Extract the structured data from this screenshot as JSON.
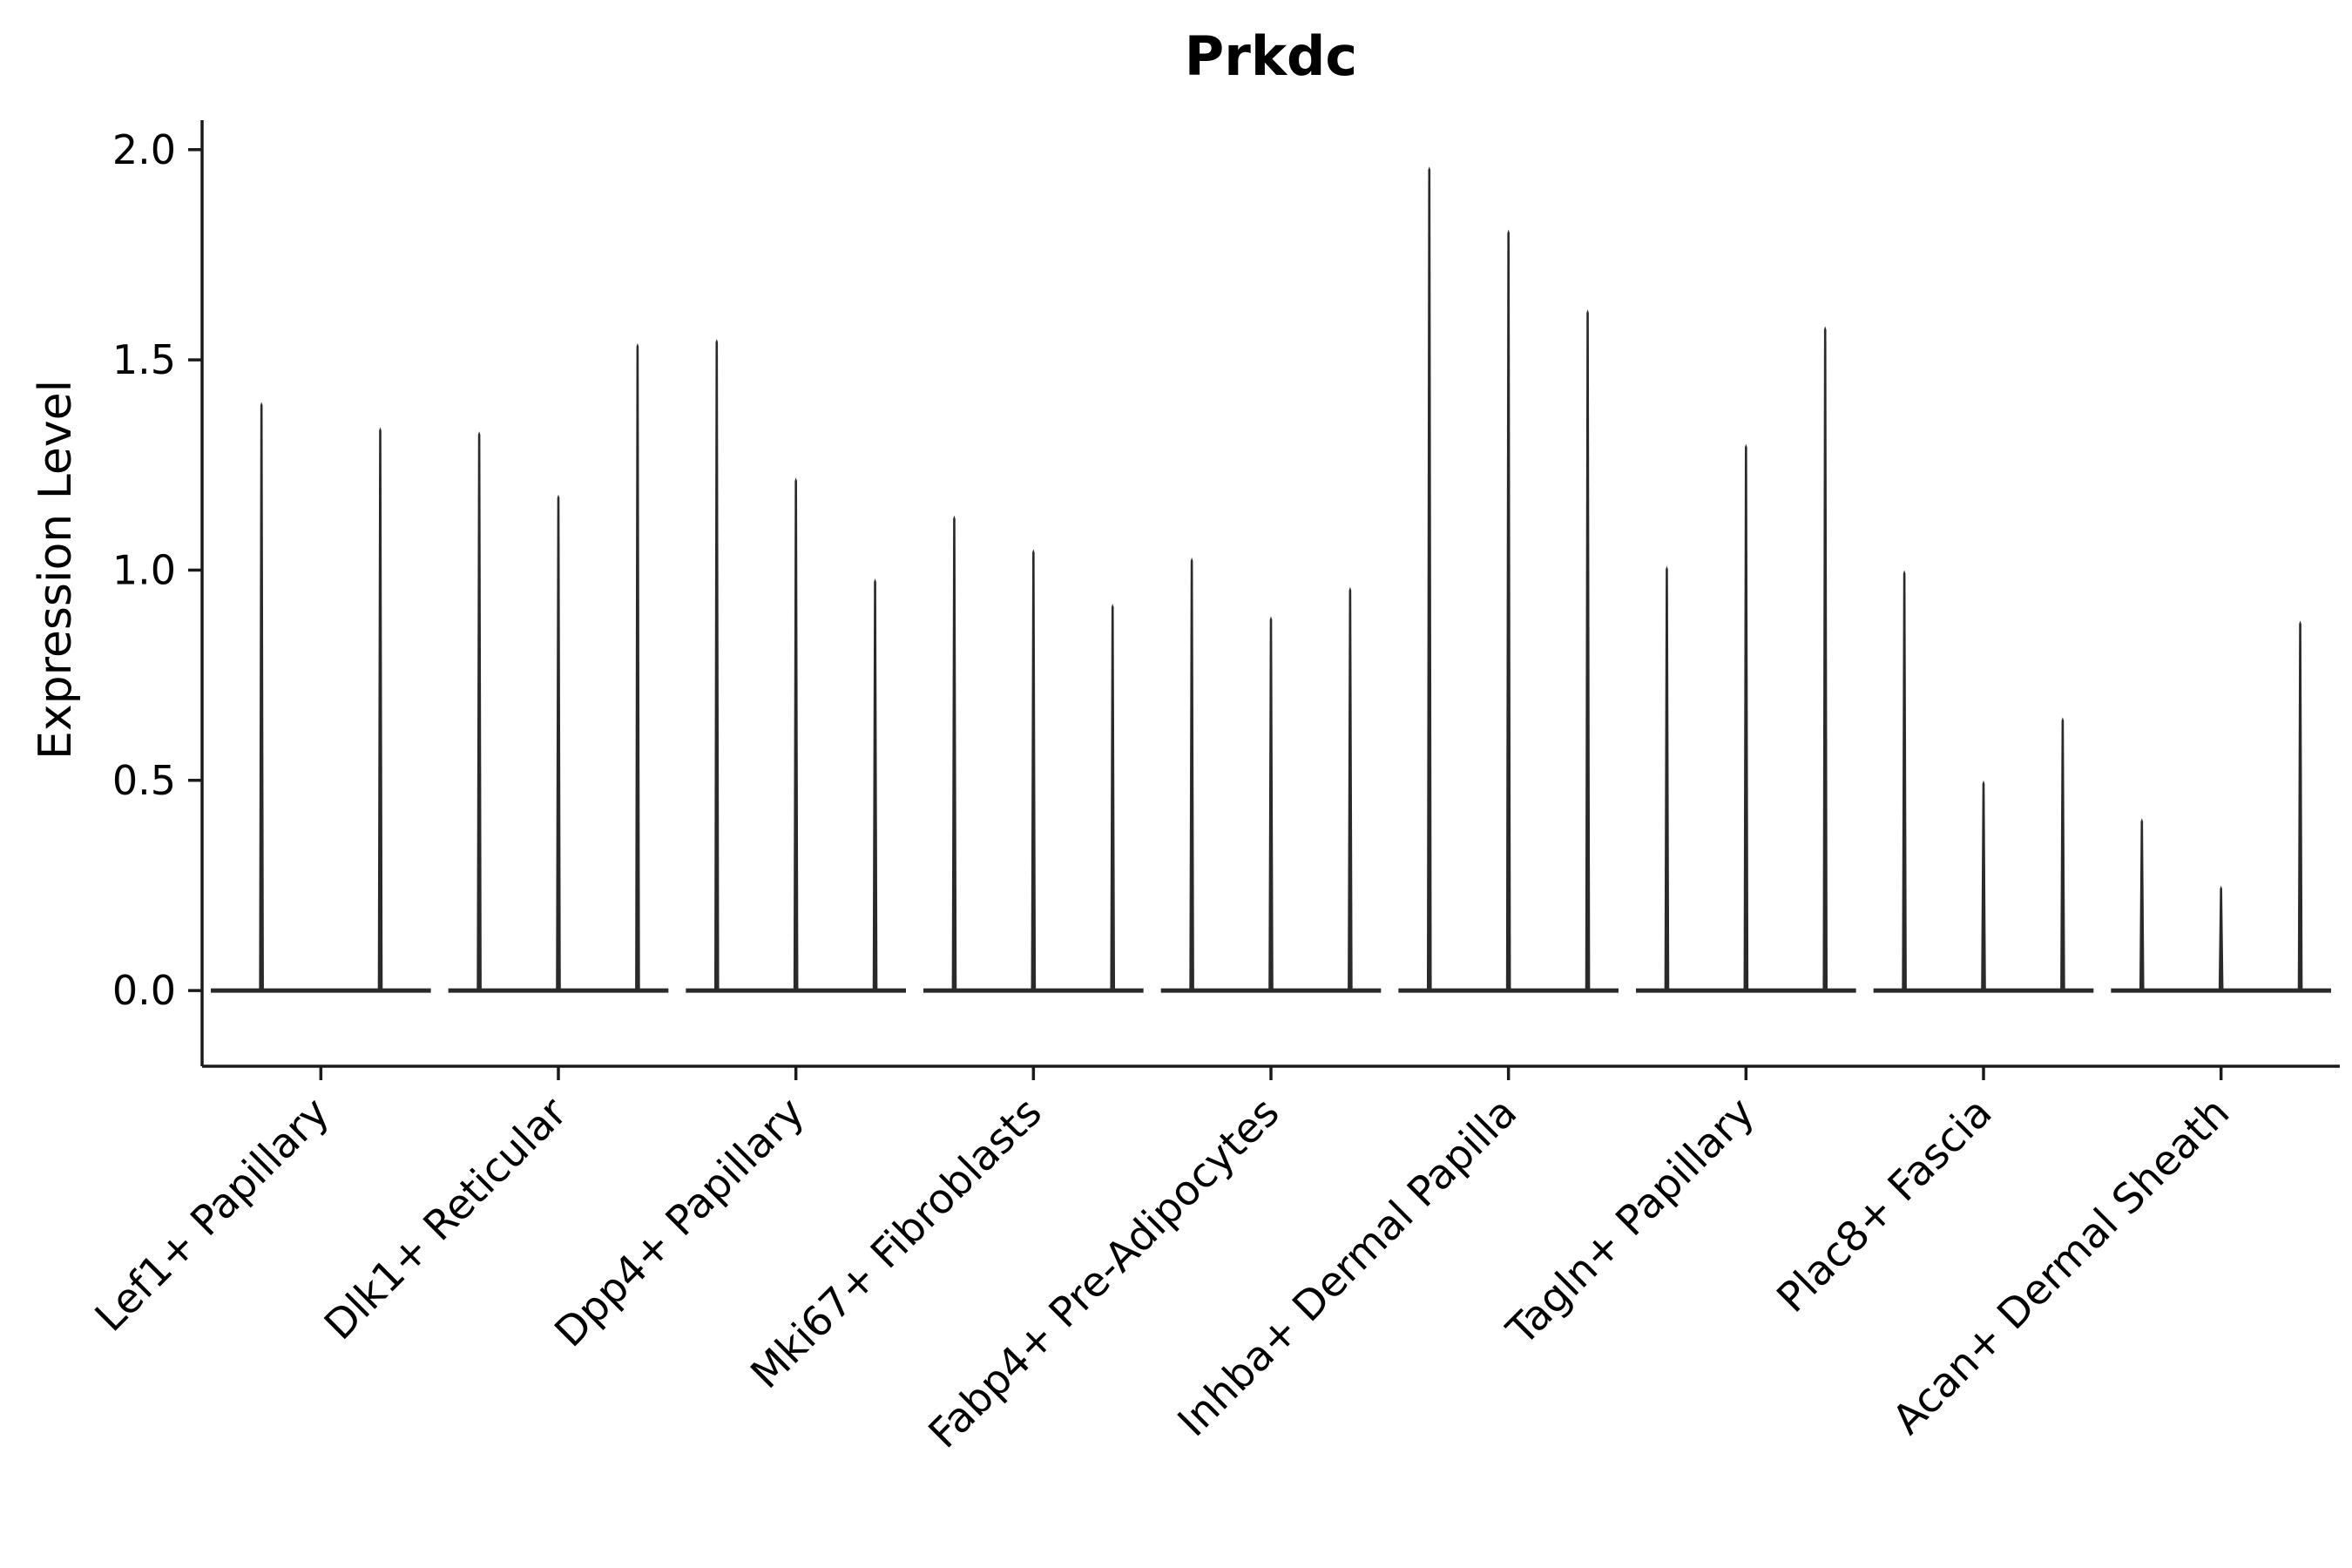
{
  "chart_data": {
    "type": "violin",
    "title": "Prkdc",
    "xlabel": "",
    "ylabel": "Expression Level",
    "ylim": [
      -0.18,
      2.07
    ],
    "yticks": [
      0.0,
      0.5,
      1.0,
      1.5,
      2.0
    ],
    "ytick_labels": [
      "0.0",
      "0.5",
      "1.0",
      "1.5",
      "2.0"
    ],
    "grid": false,
    "legend": "none",
    "violin_color": "#2a2a2a",
    "axis_color": "#1a1a1a",
    "groups": [
      {
        "label": "Lef1+ Papillary",
        "spike_maxima": [
          1.4,
          1.34
        ]
      },
      {
        "label": "Dlk1+ Reticular",
        "spike_maxima": [
          1.33,
          1.18,
          1.54
        ]
      },
      {
        "label": "Dpp4+ Papillary",
        "spike_maxima": [
          1.55,
          1.22,
          0.98
        ]
      },
      {
        "label": "Mki67+ Fibroblasts",
        "spike_maxima": [
          1.13,
          1.05,
          0.92
        ]
      },
      {
        "label": "Fabp4+ Pre-Adipocytes",
        "spike_maxima": [
          1.03,
          0.89,
          0.96
        ]
      },
      {
        "label": "Inhba+ Dermal Papilla",
        "spike_maxima": [
          1.96,
          1.81,
          1.62
        ]
      },
      {
        "label": "Tagln+ Papillary",
        "spike_maxima": [
          1.01,
          1.3,
          1.58
        ]
      },
      {
        "label": "Plac8+ Fascia",
        "spike_maxima": [
          1.0,
          0.5,
          0.65
        ]
      },
      {
        "label": "Acan+ Dermal Sheath",
        "spike_maxima": [
          0.41,
          0.25,
          0.88
        ]
      }
    ]
  }
}
